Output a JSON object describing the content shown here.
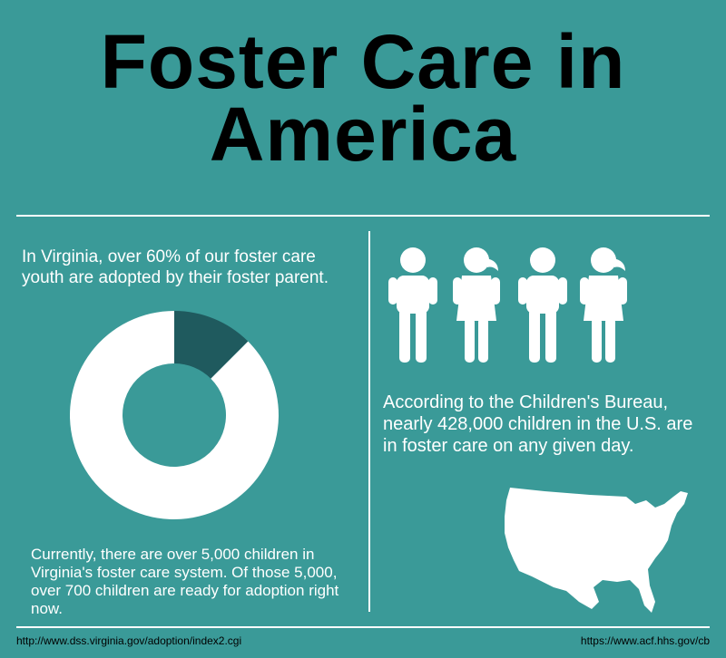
{
  "title": "Foster Care in America",
  "left": {
    "intro": "In Virginia, over 60% of our foster care youth are adopted by their foster parent.",
    "bottom": "Currently, there are over 5,000 children in Virginia's foster care system. Of those 5,000, over 700 children are ready for adoption right now."
  },
  "donut": {
    "type": "pie",
    "values": [
      12.5,
      87.5
    ],
    "colors": [
      "#1f5a5e",
      "#ffffff"
    ]
  },
  "right": {
    "text": "According to the Children's Bureau, nearly 428,000 children in the U.S. are in foster care on any given day."
  },
  "footer": {
    "left": "http://www.dss.virginia.gov/adoption/index2.cgi",
    "right": "https://www.acf.hhs.gov/cb"
  }
}
